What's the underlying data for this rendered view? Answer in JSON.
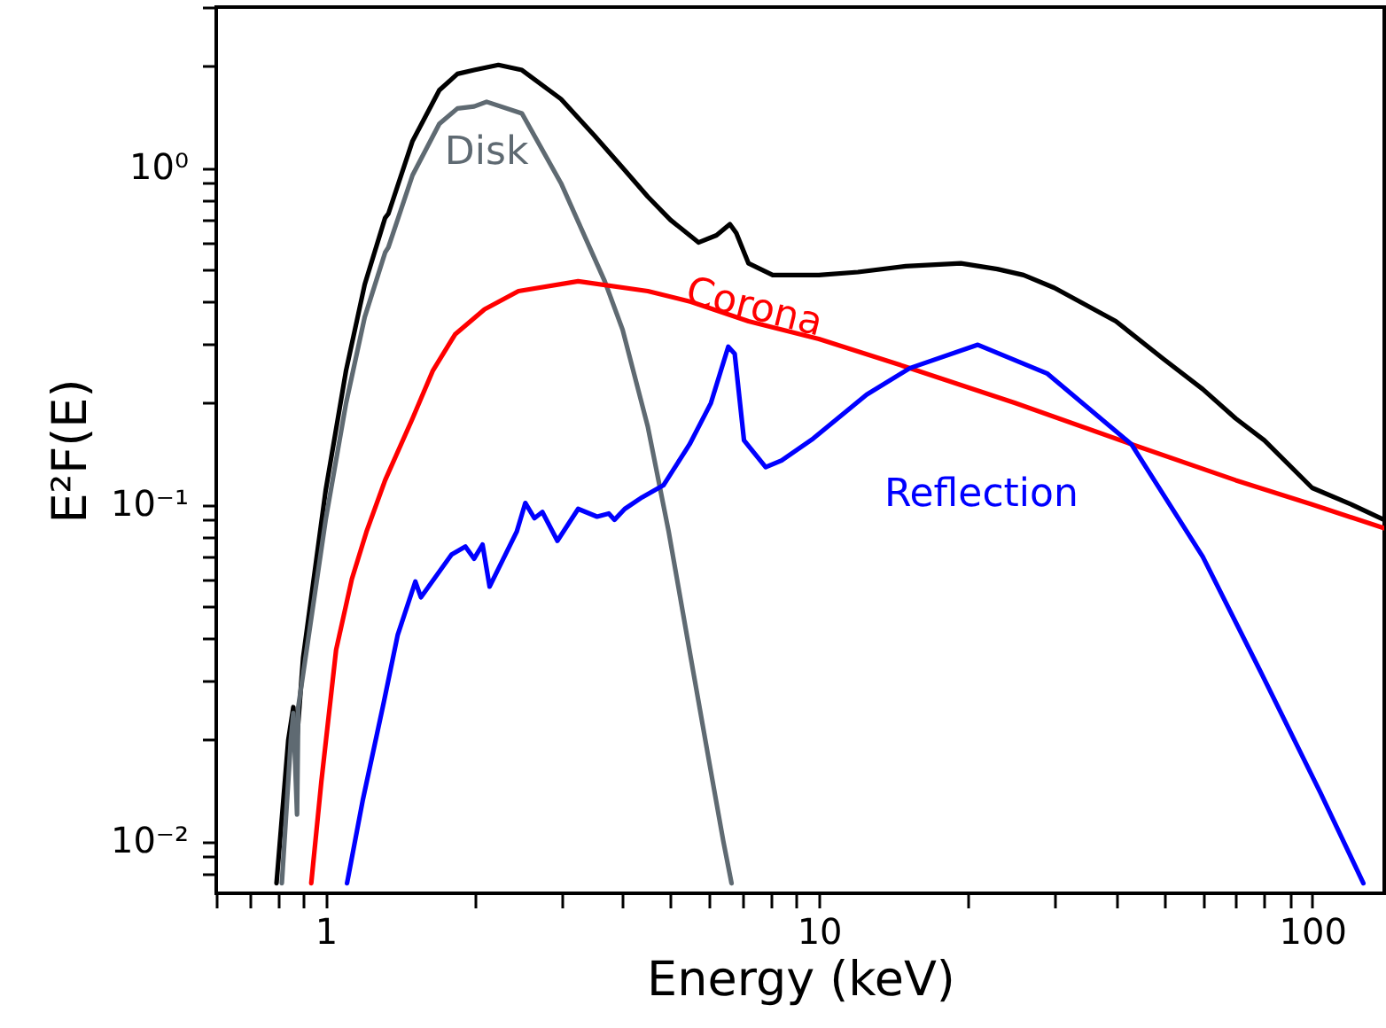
{
  "chart_data": {
    "type": "line",
    "xlabel": "Energy (keV)",
    "ylabel": "E²F(E)",
    "log": "xy",
    "grid": false,
    "line_style": "solid",
    "marker": "none",
    "xlim": [
      0.6,
      140
    ],
    "ylim": [
      0.007,
      3.0
    ],
    "xticks": [
      {
        "value": 0.6,
        "label": null
      },
      {
        "value": 0.7,
        "label": null
      },
      {
        "value": 0.8,
        "label": null
      },
      {
        "value": 0.9,
        "label": null
      },
      1,
      {
        "value": 2,
        "label": null
      },
      {
        "value": 3,
        "label": null
      },
      {
        "value": 4,
        "label": null
      },
      {
        "value": 5,
        "label": null
      },
      {
        "value": 6,
        "label": null
      },
      {
        "value": 7,
        "label": null
      },
      {
        "value": 8,
        "label": null
      },
      {
        "value": 9,
        "label": null
      },
      10,
      {
        "value": 20,
        "label": null
      },
      {
        "value": 30,
        "label": null
      },
      {
        "value": 40,
        "label": null
      },
      {
        "value": 50,
        "label": null
      },
      {
        "value": 60,
        "label": null
      },
      {
        "value": 70,
        "label": null
      },
      {
        "value": 80,
        "label": null
      },
      {
        "value": 90,
        "label": null
      },
      100
    ],
    "yticks": [
      {
        "value": 0.008,
        "label": null
      },
      {
        "value": 0.009,
        "label": null
      },
      {
        "value": 0.01,
        "label": "10⁻²"
      },
      {
        "value": 0.02,
        "label": null
      },
      {
        "value": 0.03,
        "label": null
      },
      {
        "value": 0.04,
        "label": null
      },
      {
        "value": 0.05,
        "label": null
      },
      {
        "value": 0.06,
        "label": null
      },
      {
        "value": 0.07,
        "label": null
      },
      {
        "value": 0.08,
        "label": null
      },
      {
        "value": 0.09,
        "label": null
      },
      {
        "value": 0.1,
        "label": "10⁻¹"
      },
      {
        "value": 0.2,
        "label": null
      },
      {
        "value": 0.3,
        "label": null
      },
      {
        "value": 0.4,
        "label": null
      },
      {
        "value": 0.5,
        "label": null
      },
      {
        "value": 0.6,
        "label": null
      },
      {
        "value": 0.7,
        "label": null
      },
      {
        "value": 0.8,
        "label": null
      },
      {
        "value": 0.9,
        "label": null
      },
      {
        "value": 1,
        "label": "10⁰"
      },
      {
        "value": 2,
        "label": null
      },
      {
        "value": 3,
        "label": null
      }
    ],
    "series": [
      {
        "color": "#000000",
        "x": [
          0.795,
          0.84,
          0.86,
          0.87,
          0.9,
          1.0,
          1.1,
          1.2,
          1.32,
          1.34,
          1.5,
          1.7,
          1.85,
          2.0,
          2.24,
          2.5,
          3.0,
          3.5,
          4.0,
          4.5,
          5.0,
          5.7,
          6.2,
          6.6,
          6.8,
          7.2,
          8.06,
          10,
          12,
          15,
          19.4,
          23,
          26,
          30,
          40,
          50,
          60,
          70,
          80,
          100,
          120,
          140
        ],
        "values": [
          0.0075,
          0.02,
          0.025,
          0.018,
          0.035,
          0.11,
          0.25,
          0.45,
          0.71,
          0.73,
          1.2,
          1.7,
          1.9,
          1.95,
          2.02,
          1.95,
          1.6,
          1.25,
          1.0,
          0.82,
          0.7,
          0.6,
          0.63,
          0.68,
          0.64,
          0.52,
          0.48,
          0.48,
          0.49,
          0.51,
          0.52,
          0.5,
          0.48,
          0.44,
          0.35,
          0.27,
          0.22,
          0.18,
          0.155,
          0.112,
          0.1,
          0.09
        ]
      },
      {
        "name": "Disk",
        "color": "#5f6a72",
        "x": [
          0.815,
          0.85,
          0.86,
          0.875,
          0.88,
          1.0,
          1.1,
          1.2,
          1.32,
          1.34,
          1.5,
          1.7,
          1.85,
          2.0,
          2.12,
          2.5,
          3.0,
          3.68,
          4.0,
          4.5,
          4.96,
          5.5,
          6.0,
          6.4,
          6.65
        ],
        "values": [
          0.0075,
          0.02,
          0.024,
          0.012,
          0.025,
          0.09,
          0.2,
          0.36,
          0.56,
          0.58,
          0.95,
          1.35,
          1.5,
          1.52,
          1.57,
          1.45,
          0.9,
          0.46,
          0.33,
          0.17,
          0.083,
          0.035,
          0.017,
          0.01,
          0.0075
        ]
      },
      {
        "name": "Corona",
        "color": "#ff0000",
        "x": [
          0.935,
          0.98,
          1.05,
          1.13,
          1.21,
          1.32,
          1.5,
          1.65,
          1.83,
          2.1,
          2.46,
          3.25,
          4.5,
          5.5,
          7.2,
          10,
          15.3,
          25,
          43,
          70,
          100,
          140
        ],
        "values": [
          0.0075,
          0.015,
          0.037,
          0.06,
          0.083,
          0.118,
          0.18,
          0.25,
          0.32,
          0.38,
          0.43,
          0.46,
          0.43,
          0.4,
          0.35,
          0.31,
          0.254,
          0.2,
          0.151,
          0.118,
          0.1,
          0.085
        ]
      },
      {
        "name": "Reflection",
        "color": "#0000ff",
        "x": [
          1.105,
          1.19,
          1.31,
          1.4,
          1.52,
          1.56,
          1.8,
          1.92,
          2.0,
          2.08,
          2.15,
          2.44,
          2.54,
          2.65,
          2.75,
          2.95,
          3.25,
          3.55,
          3.75,
          3.85,
          4.04,
          4.38,
          4.84,
          5.47,
          6.04,
          6.55,
          6.75,
          7.05,
          7.8,
          8.4,
          9.74,
          12.5,
          15.3,
          21,
          29,
          43,
          60,
          78.5,
          104,
          127
        ],
        "values": [
          0.0075,
          0.0133,
          0.0256,
          0.041,
          0.059,
          0.053,
          0.071,
          0.075,
          0.069,
          0.076,
          0.057,
          0.083,
          0.101,
          0.091,
          0.095,
          0.078,
          0.097,
          0.092,
          0.094,
          0.09,
          0.097,
          0.105,
          0.114,
          0.151,
          0.2,
          0.294,
          0.28,
          0.155,
          0.129,
          0.135,
          0.157,
          0.212,
          0.254,
          0.298,
          0.245,
          0.151,
          0.07,
          0.032,
          0.0139,
          0.0075
        ]
      }
    ]
  }
}
